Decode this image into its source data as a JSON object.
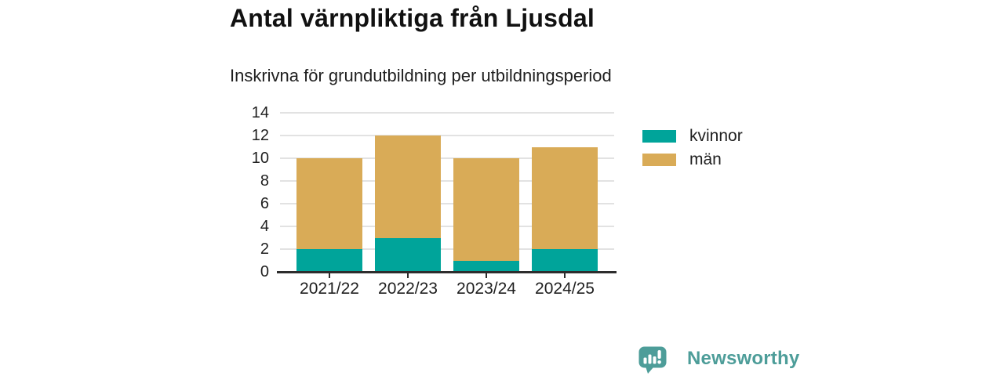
{
  "header": {
    "title": "Antal värnpliktiga från Ljusdal",
    "subtitle": "Inskrivna för grundutbildning per utbildningsperiod"
  },
  "chart_data": {
    "type": "bar",
    "stacked": true,
    "title": "Antal värnpliktiga från Ljusdal",
    "subtitle": "Inskrivna för grundutbildning per utbildningsperiod",
    "categories": [
      "2021/22",
      "2022/23",
      "2023/24",
      "2024/25"
    ],
    "series": [
      {
        "name": "kvinnor",
        "color": "#00a49a",
        "values": [
          2,
          3,
          1,
          2
        ]
      },
      {
        "name": "män",
        "color": "#d9ab57",
        "values": [
          8,
          9,
          9,
          9
        ]
      }
    ],
    "stack_totals": [
      10,
      12,
      10,
      11
    ],
    "xlabel": "",
    "ylabel": "",
    "ylim": [
      0,
      14
    ],
    "yticks": [
      0,
      2,
      4,
      6,
      8,
      10,
      12,
      14
    ],
    "grid": "horizontal",
    "legend_position": "right"
  },
  "footer": {
    "brand": "Newsworthy",
    "brand_color": "#4d9d99"
  },
  "style": {
    "background": "#ffffff",
    "title_color": "#111111",
    "text_color": "#1f1f1f",
    "axis_color": "#2d2d2d",
    "grid_color": "#e2e2e2"
  }
}
